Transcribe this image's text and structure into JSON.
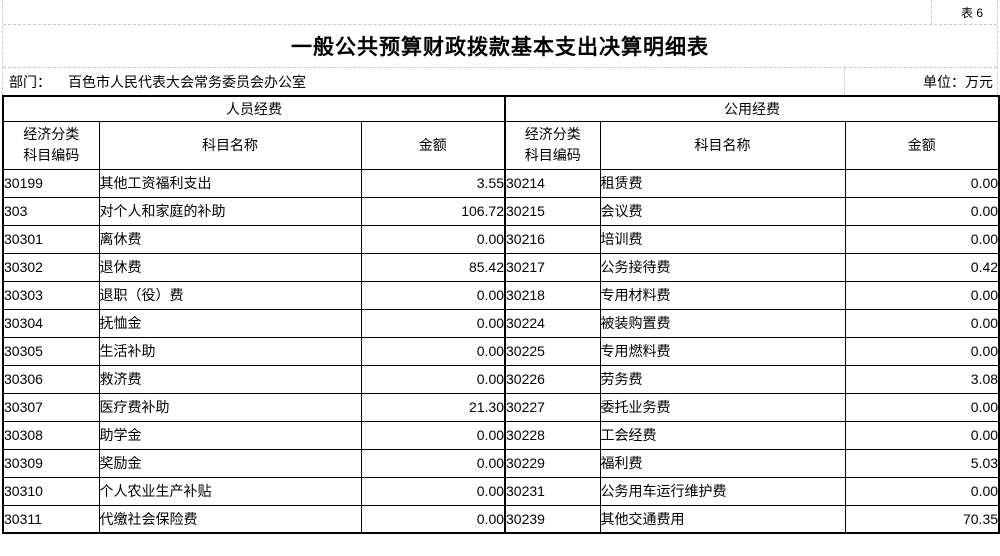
{
  "sheet": {
    "table_tag": "表 6",
    "title": "一般公共预算财政拨款基本支出决算明细表",
    "department_label": "部门：",
    "department_value": "百色市人民代表大会常务委员会办公室",
    "unit_label": "单位：万元"
  },
  "table": {
    "sections": {
      "left": "人员经费",
      "right": "公用经费"
    },
    "headers": {
      "code_line1": "经济分类",
      "code_line2": "科目编码",
      "name": "科目名称",
      "amount": "金额"
    },
    "left_rows": [
      {
        "code": "30199",
        "name": "其他工资福利支出",
        "amount": "3.55"
      },
      {
        "code": "303",
        "name": "对个人和家庭的补助",
        "amount": "106.72"
      },
      {
        "code": "30301",
        "name": "离休费",
        "amount": "0.00"
      },
      {
        "code": "30302",
        "name": "退休费",
        "amount": "85.42"
      },
      {
        "code": "30303",
        "name": "退职（役）费",
        "amount": "0.00"
      },
      {
        "code": "30304",
        "name": "抚恤金",
        "amount": "0.00"
      },
      {
        "code": "30305",
        "name": "生活补助",
        "amount": "0.00"
      },
      {
        "code": "30306",
        "name": "救济费",
        "amount": "0.00"
      },
      {
        "code": "30307",
        "name": "医疗费补助",
        "amount": "21.30"
      },
      {
        "code": "30308",
        "name": "助学金",
        "amount": "0.00"
      },
      {
        "code": "30309",
        "name": "奖励金",
        "amount": "0.00"
      },
      {
        "code": "30310",
        "name": "个人农业生产补贴",
        "amount": "0.00"
      },
      {
        "code": "30311",
        "name": "代缴社会保险费",
        "amount": "0.00"
      }
    ],
    "right_rows": [
      {
        "code": "30214",
        "name": "租赁费",
        "amount": "0.00"
      },
      {
        "code": "30215",
        "name": "会议费",
        "amount": "0.00"
      },
      {
        "code": "30216",
        "name": "培训费",
        "amount": "0.00"
      },
      {
        "code": "30217",
        "name": "公务接待费",
        "amount": "0.42"
      },
      {
        "code": "30218",
        "name": "专用材料费",
        "amount": "0.00"
      },
      {
        "code": "30224",
        "name": "被装购置费",
        "amount": "0.00"
      },
      {
        "code": "30225",
        "name": "专用燃料费",
        "amount": "0.00"
      },
      {
        "code": "30226",
        "name": "劳务费",
        "amount": "3.08"
      },
      {
        "code": "30227",
        "name": "委托业务费",
        "amount": "0.00"
      },
      {
        "code": "30228",
        "name": "工会经费",
        "amount": "0.00"
      },
      {
        "code": "30229",
        "name": "福利费",
        "amount": "5.03"
      },
      {
        "code": "30231",
        "name": "公务用车运行维护费",
        "amount": "0.00"
      },
      {
        "code": "30239",
        "name": "其他交通费用",
        "amount": "70.35"
      }
    ]
  }
}
